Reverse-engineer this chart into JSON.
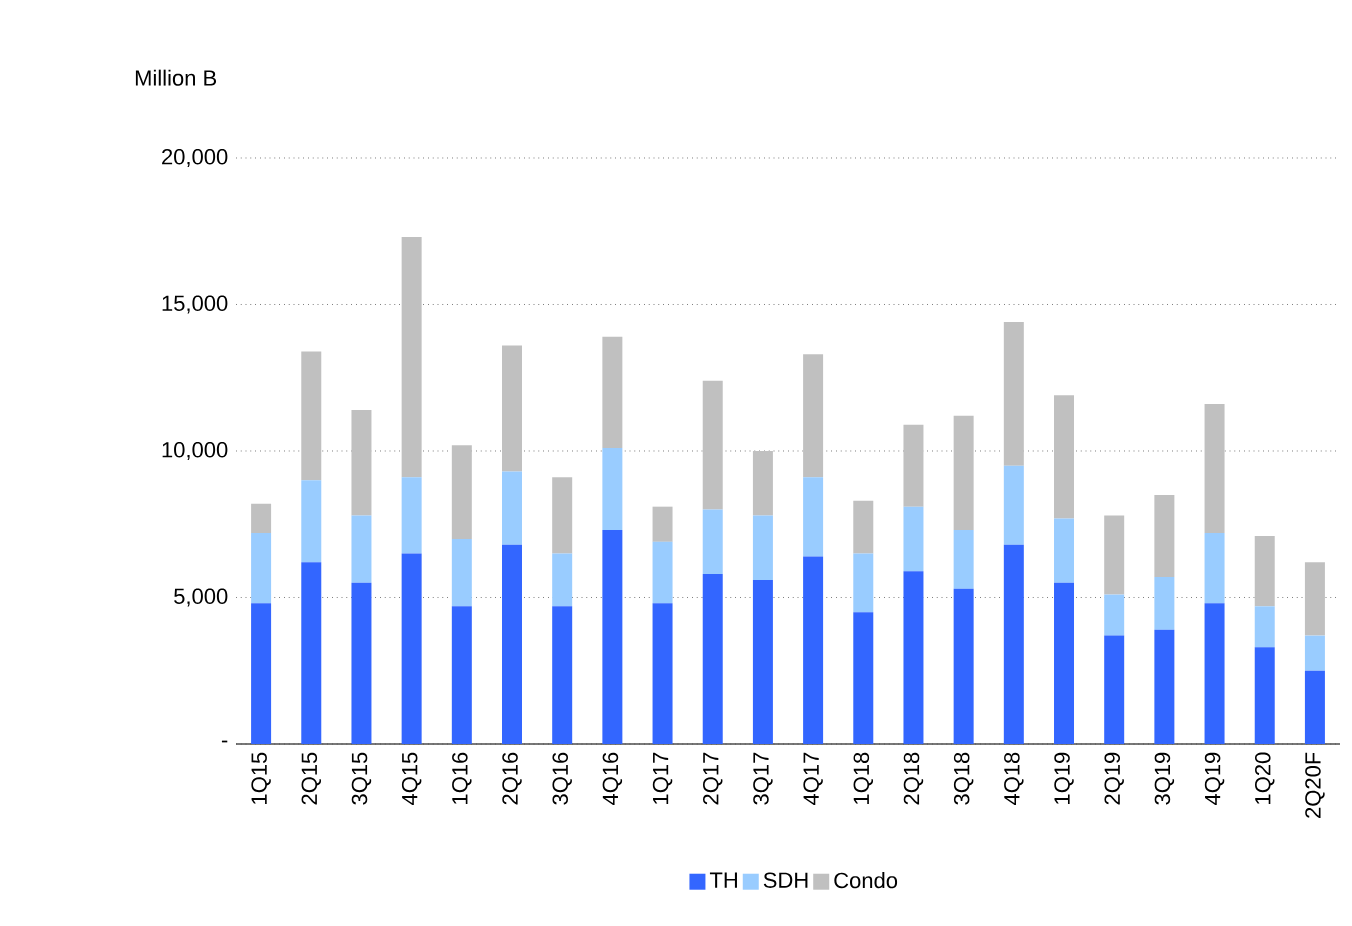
{
  "chart_data": {
    "type": "bar",
    "stacked": true,
    "ylabel": "Million B",
    "categories": [
      "1Q15",
      "2Q15",
      "3Q15",
      "4Q15",
      "1Q16",
      "2Q16",
      "3Q16",
      "4Q16",
      "1Q17",
      "2Q17",
      "3Q17",
      "4Q17",
      "1Q18",
      "2Q18",
      "3Q18",
      "4Q18",
      "1Q19",
      "2Q19",
      "3Q19",
      "4Q19",
      "1Q20",
      "2Q20F"
    ],
    "series": [
      {
        "name": "TH",
        "color": "#3366ff",
        "values": [
          4800,
          6200,
          5500,
          6500,
          4700,
          6800,
          4700,
          7300,
          4800,
          5800,
          5600,
          6400,
          4500,
          5900,
          5300,
          6800,
          5500,
          3700,
          3900,
          4800,
          3300,
          2500
        ]
      },
      {
        "name": "SDH",
        "color": "#99ccff",
        "values": [
          2400,
          2800,
          2300,
          2600,
          2300,
          2500,
          1800,
          2800,
          2100,
          2200,
          2200,
          2700,
          2000,
          2200,
          2000,
          2700,
          2200,
          1400,
          1800,
          2400,
          1400,
          1200
        ]
      },
      {
        "name": "Condo",
        "color": "#c0c0c0",
        "values": [
          1000,
          4400,
          3600,
          8200,
          3200,
          4300,
          2600,
          3800,
          1200,
          4400,
          2200,
          4200,
          1800,
          2800,
          3900,
          4900,
          4200,
          2700,
          2800,
          4400,
          2400,
          2500
        ]
      }
    ],
    "ylim": [
      0,
      20000
    ],
    "yticks": [
      {
        "value": 0,
        "label": "-"
      },
      {
        "value": 5000,
        "label": "5,000"
      },
      {
        "value": 10000,
        "label": "10,000"
      },
      {
        "value": 15000,
        "label": "15,000"
      },
      {
        "value": 20000,
        "label": "20,000"
      }
    ],
    "grid": "y",
    "legend": "bottom"
  }
}
